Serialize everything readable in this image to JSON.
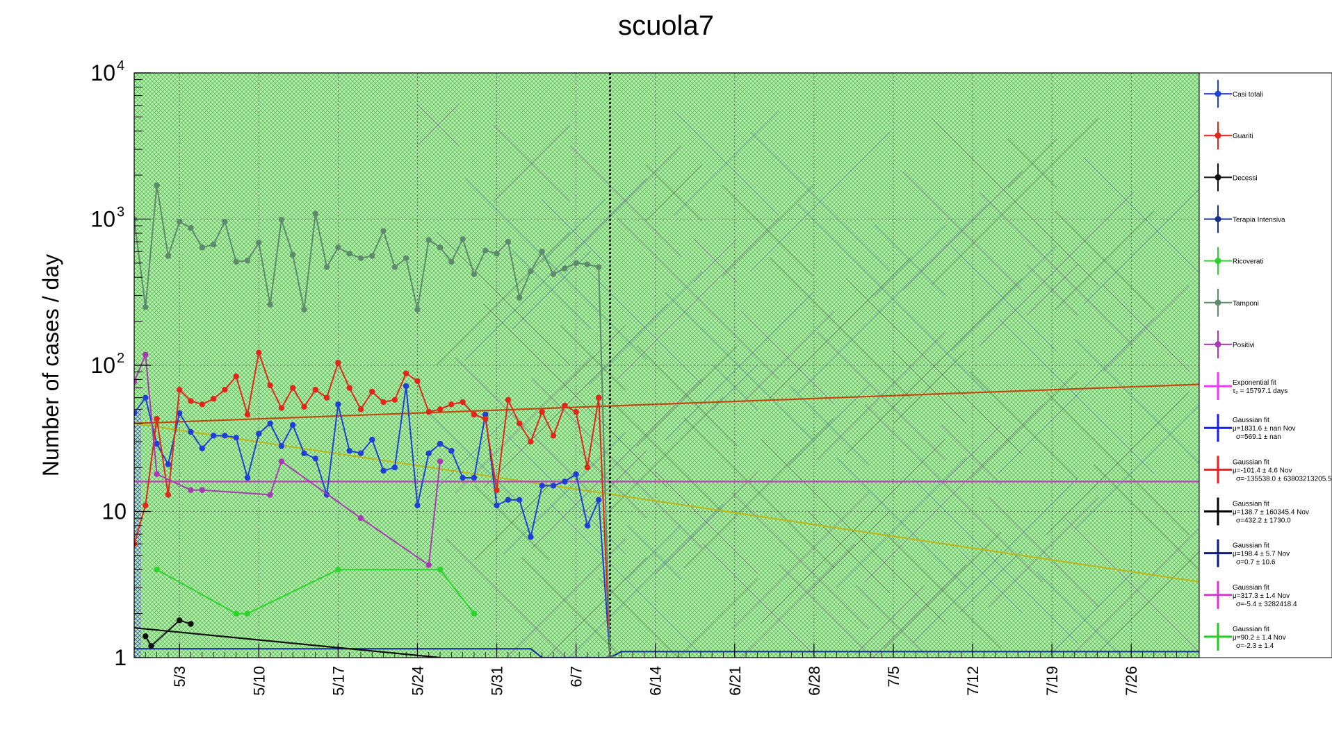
{
  "chart_data": {
    "type": "line",
    "title": "scuola7",
    "ylabel": "Number of cases / day",
    "yscale": "log",
    "ylim": [
      1,
      10000
    ],
    "y_ticks": [
      {
        "v": 1,
        "label": "1"
      },
      {
        "v": 10,
        "label": "10"
      },
      {
        "v": 100,
        "label": "10",
        "exp": "2"
      },
      {
        "v": 1000,
        "label": "10",
        "exp": "3"
      },
      {
        "v": 10000,
        "label": "10",
        "exp": "4"
      }
    ],
    "xlim": [
      0,
      94
    ],
    "x_ticks": [
      {
        "d": 4,
        "label": "5/3"
      },
      {
        "d": 11,
        "label": "5/10"
      },
      {
        "d": 18,
        "label": "5/17"
      },
      {
        "d": 25,
        "label": "5/24"
      },
      {
        "d": 32,
        "label": "5/31"
      },
      {
        "d": 39,
        "label": "6/7"
      },
      {
        "d": 46,
        "label": "6/14"
      },
      {
        "d": 53,
        "label": "6/21"
      },
      {
        "d": 60,
        "label": "6/28"
      },
      {
        "d": 67,
        "label": "7/5"
      },
      {
        "d": 74,
        "label": "7/12"
      },
      {
        "d": 81,
        "label": "7/19"
      },
      {
        "d": 88,
        "label": "7/26"
      }
    ],
    "grid": true,
    "background_color": "#a8e8a0",
    "legend_position": "right",
    "vline_day": 42,
    "series": [
      {
        "name": "Casi totali",
        "color": "#1f3fd6",
        "x": [
          0,
          1,
          2,
          3,
          4,
          5,
          6,
          7,
          8,
          9,
          10,
          11,
          12,
          13,
          14,
          15,
          16,
          17,
          18,
          19,
          20,
          21,
          22,
          23,
          24,
          25,
          26,
          27,
          28,
          29,
          30,
          31,
          32,
          33,
          34,
          35,
          36,
          37,
          38,
          39,
          40,
          41,
          42
        ],
        "y": [
          47,
          60,
          29,
          21,
          47,
          35,
          27,
          33,
          33,
          32,
          17,
          34,
          40,
          28,
          39,
          25,
          23,
          13,
          54,
          26,
          25,
          31,
          19,
          20,
          72,
          11,
          25,
          29,
          26,
          17,
          17,
          46,
          11,
          12,
          12,
          6.7,
          15,
          15,
          16,
          18,
          8,
          12,
          1
        ]
      },
      {
        "name": "Guariti",
        "color": "#e0271a",
        "x": [
          0,
          1,
          2,
          3,
          4,
          5,
          6,
          7,
          8,
          9,
          10,
          11,
          12,
          13,
          14,
          15,
          16,
          17,
          18,
          19,
          20,
          21,
          22,
          23,
          24,
          25,
          26,
          27,
          28,
          29,
          30,
          31,
          32,
          33,
          34,
          35,
          36,
          37,
          38,
          39,
          40,
          41,
          42
        ],
        "y": [
          6,
          11,
          43,
          13,
          68,
          57,
          54,
          59,
          68,
          84,
          46,
          122,
          73,
          51,
          70,
          52,
          68,
          60,
          104,
          70,
          50,
          66,
          56,
          58,
          88,
          78,
          48,
          50,
          54,
          56,
          46,
          43,
          14,
          58,
          40,
          30,
          48,
          33,
          53,
          48,
          20,
          60,
          1
        ]
      },
      {
        "name": "Decessi",
        "color": "#111111",
        "x": [
          1,
          1.5,
          4,
          5
        ],
        "y": [
          1.4,
          1.2,
          1.8,
          1.7
        ]
      },
      {
        "name": "Terapia Intensiva",
        "color": "#1a2f8c",
        "x": [],
        "y": []
      },
      {
        "name": "Ricoverati",
        "color": "#2bd42b",
        "x": [
          2,
          9,
          10,
          18,
          27,
          30
        ],
        "y": [
          4,
          2,
          2,
          4,
          4,
          2
        ]
      },
      {
        "name": "Tamponi",
        "color": "#5e8a6e",
        "x": [
          0,
          1,
          2,
          3,
          4,
          5,
          6,
          7,
          8,
          9,
          10,
          11,
          12,
          13,
          14,
          15,
          16,
          17,
          18,
          19,
          20,
          21,
          22,
          23,
          24,
          25,
          26,
          27,
          28,
          29,
          30,
          31,
          32,
          33,
          34,
          35,
          36,
          37,
          38,
          39,
          40,
          41,
          42
        ],
        "y": [
          1000,
          250,
          1700,
          560,
          960,
          870,
          640,
          670,
          960,
          510,
          520,
          690,
          260,
          990,
          570,
          240,
          1090,
          470,
          640,
          580,
          540,
          560,
          830,
          470,
          540,
          240,
          720,
          640,
          510,
          730,
          420,
          610,
          580,
          700,
          290,
          440,
          600,
          420,
          460,
          500,
          490,
          470,
          1
        ]
      },
      {
        "name": "Positivi",
        "color": "#a83bb5",
        "x": [
          0,
          1,
          2,
          5,
          6,
          12,
          13,
          20,
          26,
          27
        ],
        "y": [
          77,
          118,
          18,
          14,
          14,
          13,
          22,
          9,
          4.3,
          22
        ]
      }
    ],
    "fits": [
      {
        "name": "Exponential fit",
        "color": "#ff33ff",
        "params": [
          "τ₂ = 15797.1 days"
        ]
      },
      {
        "name": "Gaussian fit",
        "color": "#1a1aff",
        "params": [
          "μ=1831.6 ± nan Nov",
          "σ=569.1 ± nan"
        ]
      },
      {
        "name": "Gaussian fit",
        "color": "#ff1a1a",
        "params": [
          "μ=-101.4 ± 4.6 Nov",
          "σ=-135538.0 ± 63803213205.5"
        ]
      },
      {
        "name": "Gaussian fit",
        "color": "#000000",
        "params": [
          "μ=138.7 ± 160345.4 Nov",
          "σ=432.2 ± 1730.0"
        ]
      },
      {
        "name": "Gaussian fit",
        "color": "#0a1a8a",
        "params": [
          "μ=198.4 ± 5.7 Nov",
          "σ=0.7 ± 10.6"
        ]
      },
      {
        "name": "Gaussian fit",
        "color": "#dd33dd",
        "params": [
          "μ=317.3 ± 1.4 Nov",
          "σ=-5.4 ± 3282418.4"
        ]
      },
      {
        "name": "Gaussian fit",
        "color": "#22cc22",
        "params": [
          "μ=90.2 ± 1.4 Nov",
          "σ=-2.3 ± 1.4"
        ]
      }
    ],
    "overlay_lines": [
      {
        "color": "#c04a10",
        "x": [
          0,
          94
        ],
        "y": [
          40,
          74
        ]
      },
      {
        "color": "#b8b820",
        "x": [
          0,
          94
        ],
        "y": [
          40,
          3.3
        ]
      },
      {
        "color": "#c040c0",
        "x": [
          0,
          94
        ],
        "y": [
          16,
          16
        ]
      },
      {
        "color": "#1a3a9a",
        "x": [
          0,
          35,
          36,
          42,
          43,
          94
        ],
        "y": [
          1.15,
          1.15,
          1.0,
          1.0,
          1.1,
          1.1
        ]
      },
      {
        "color": "#111111",
        "x": [
          0,
          27
        ],
        "y": [
          1.6,
          1.0
        ]
      }
    ]
  }
}
